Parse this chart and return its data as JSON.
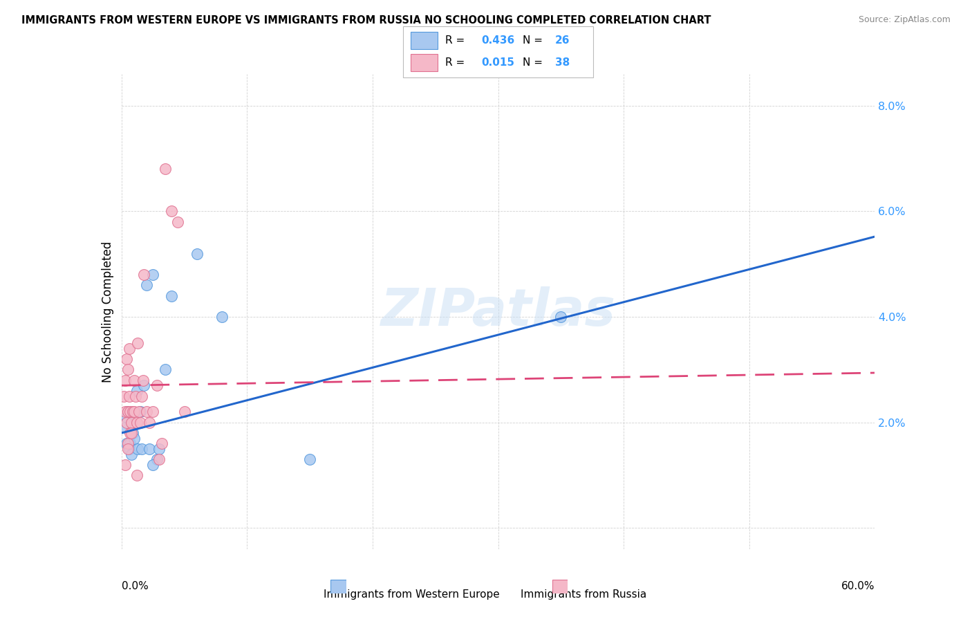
{
  "title": "IMMIGRANTS FROM WESTERN EUROPE VS IMMIGRANTS FROM RUSSIA NO SCHOOLING COMPLETED CORRELATION CHART",
  "source": "Source: ZipAtlas.com",
  "ylabel": "No Schooling Completed",
  "xlim": [
    0.0,
    0.6
  ],
  "ylim": [
    -0.004,
    0.086
  ],
  "ytick_vals": [
    0.0,
    0.02,
    0.04,
    0.06,
    0.08
  ],
  "ytick_labels": [
    "",
    "2.0%",
    "4.0%",
    "6.0%",
    "8.0%"
  ],
  "legend_label_blue": "Immigrants from Western Europe",
  "legend_label_pink": "Immigrants from Russia",
  "watermark": "ZIPatlas",
  "blue_color": "#A8C8F0",
  "blue_edge": "#5599DD",
  "pink_color": "#F5B8C8",
  "pink_edge": "#E07090",
  "trendline_blue_color": "#2266CC",
  "trendline_pink_color": "#DD4477",
  "trendline_pink_dash": [
    8,
    4
  ],
  "legend_R_color": "#3399FF",
  "legend_N_color": "#3399FF",
  "blue_x": [
    0.003,
    0.004,
    0.004,
    0.005,
    0.006,
    0.007,
    0.008,
    0.009,
    0.01,
    0.012,
    0.013,
    0.015,
    0.016,
    0.018,
    0.02,
    0.022,
    0.025,
    0.028,
    0.03,
    0.035,
    0.04,
    0.06,
    0.08,
    0.15,
    0.35,
    0.025
  ],
  "blue_y": [
    0.019,
    0.021,
    0.016,
    0.022,
    0.015,
    0.016,
    0.014,
    0.018,
    0.017,
    0.026,
    0.015,
    0.022,
    0.015,
    0.027,
    0.046,
    0.015,
    0.048,
    0.013,
    0.015,
    0.03,
    0.044,
    0.052,
    0.04,
    0.013,
    0.04,
    0.012
  ],
  "pink_x": [
    0.002,
    0.003,
    0.003,
    0.004,
    0.004,
    0.005,
    0.005,
    0.005,
    0.006,
    0.006,
    0.007,
    0.007,
    0.008,
    0.009,
    0.01,
    0.01,
    0.011,
    0.012,
    0.013,
    0.014,
    0.015,
    0.016,
    0.017,
    0.018,
    0.02,
    0.022,
    0.025,
    0.028,
    0.03,
    0.032,
    0.035,
    0.04,
    0.045,
    0.05,
    0.003,
    0.005,
    0.008,
    0.012
  ],
  "pink_y": [
    0.025,
    0.028,
    0.022,
    0.032,
    0.02,
    0.03,
    0.022,
    0.016,
    0.034,
    0.025,
    0.022,
    0.018,
    0.02,
    0.022,
    0.028,
    0.022,
    0.025,
    0.02,
    0.035,
    0.022,
    0.02,
    0.025,
    0.028,
    0.048,
    0.022,
    0.02,
    0.022,
    0.027,
    0.013,
    0.016,
    0.068,
    0.06,
    0.058,
    0.022,
    0.012,
    0.015,
    0.018,
    0.01
  ]
}
